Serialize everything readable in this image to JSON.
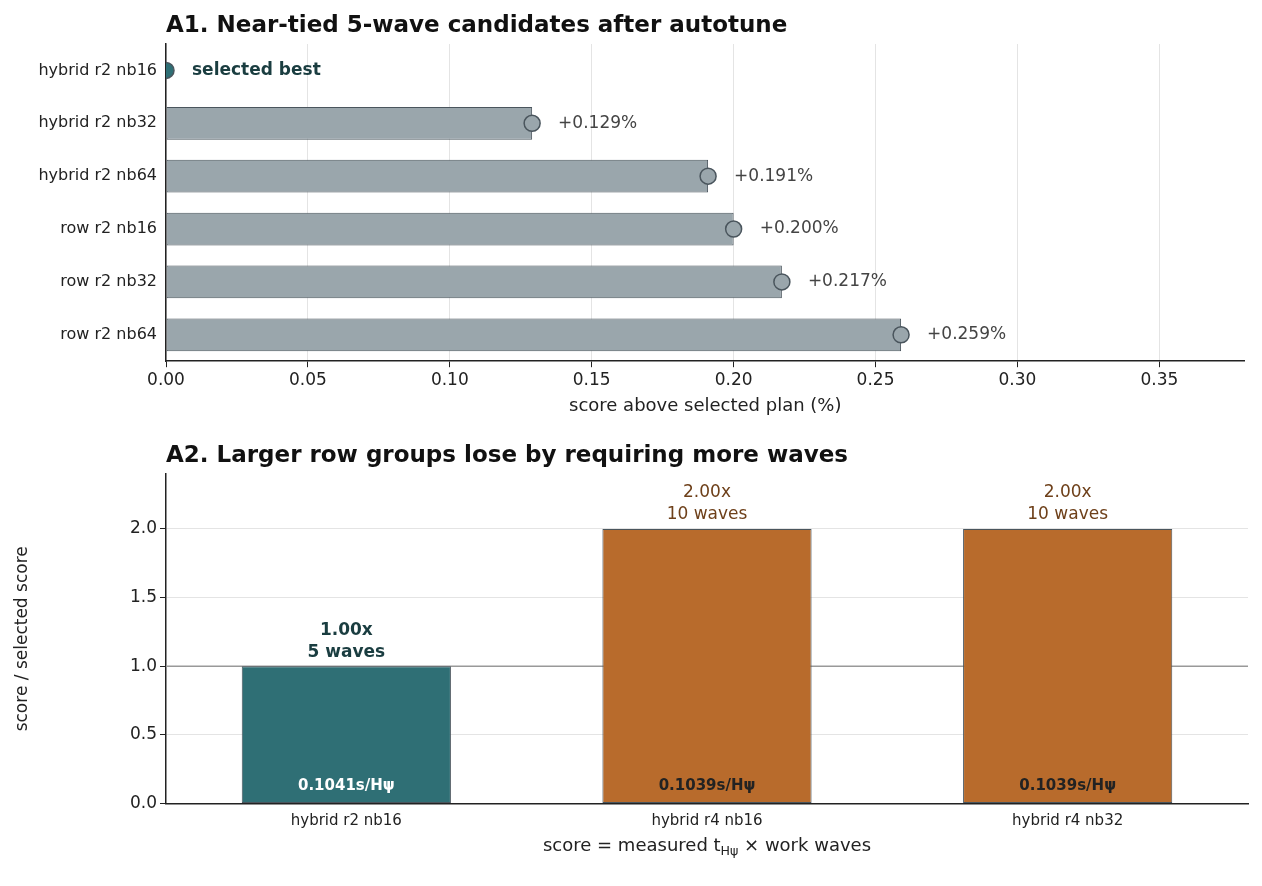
{
  "chart_data": [
    {
      "type": "bar",
      "title": "A1. Near-tied 5-wave candidates after autotune",
      "orientation": "horizontal",
      "categories": [
        "hybrid r2 nb16",
        "hybrid r2 nb32",
        "hybrid r2 nb64",
        "row r2 nb16",
        "row r2 nb32",
        "row r2 nb64"
      ],
      "series": [
        {
          "type": "bar",
          "color": "#9aa6ac",
          "values": [
            0,
            0.129,
            0.191,
            0.2,
            0.217,
            0.259
          ]
        },
        {
          "type": "scatter",
          "colors": [
            "#2f6f75",
            "#9aa6ac",
            "#9aa6ac",
            "#9aa6ac",
            "#9aa6ac",
            "#9aa6ac"
          ],
          "values": [
            0,
            0.129,
            0.191,
            0.2,
            0.217,
            0.259
          ],
          "value_labels": [
            "selected best",
            "+0.129%",
            "+0.191%",
            "+0.200%",
            "+0.217%",
            "+0.259%"
          ]
        }
      ],
      "xlim": [
        0,
        0.38
      ],
      "xticks": [
        {
          "value": 0,
          "label": "0.00"
        },
        {
          "value": 0.05,
          "label": "0.05"
        },
        {
          "value": 0.1,
          "label": "0.10"
        },
        {
          "value": 0.15,
          "label": "0.15"
        },
        {
          "value": 0.2,
          "label": "0.20"
        },
        {
          "value": 0.25,
          "label": "0.25"
        },
        {
          "value": 0.3,
          "label": "0.30"
        },
        {
          "value": 0.35,
          "label": "0.35"
        }
      ],
      "xlabel": "score above selected plan (%)",
      "grid": "x",
      "marker": "circle",
      "legend": false
    },
    {
      "type": "bar",
      "title": "A2. Larger row groups lose by requiring more waves",
      "categories": [
        "hybrid r2 nb16",
        "hybrid r4 nb16",
        "hybrid r4 nb32"
      ],
      "values": [
        1,
        2,
        2
      ],
      "colors": [
        "#2f6f75",
        "#b86b2c",
        "#b86b2c"
      ],
      "value_labels": [
        "1.00x\n5 waves",
        "2.00x\n10 waves",
        "2.00x\n10 waves"
      ],
      "ylim": [
        0,
        2.4
      ],
      "yticks": [
        {
          "value": 0,
          "label": "0.0"
        },
        {
          "value": 0.5,
          "label": "0.5"
        },
        {
          "value": 1,
          "label": "1.0"
        },
        {
          "value": 1.5,
          "label": "1.5"
        },
        {
          "value": 2,
          "label": "2.0"
        }
      ],
      "ylabel": "score / selected score",
      "xlabel": "score = measured t$_{Hψ}$ × work waves",
      "grid": "y",
      "ref_lines": [
        {
          "axis": "y",
          "value": 1,
          "color": "#999999"
        }
      ],
      "annotations": [
        {
          "text": "0.1041s/Hψ",
          "x": "hybrid r2 nb16",
          "y": 0
        },
        {
          "text": "0.1039s/Hψ",
          "x": "hybrid r4 nb16",
          "y": 0
        },
        {
          "text": "0.1039s/Hψ",
          "x": "hybrid r4 nb32",
          "y": 0
        }
      ],
      "legend": false
    }
  ]
}
